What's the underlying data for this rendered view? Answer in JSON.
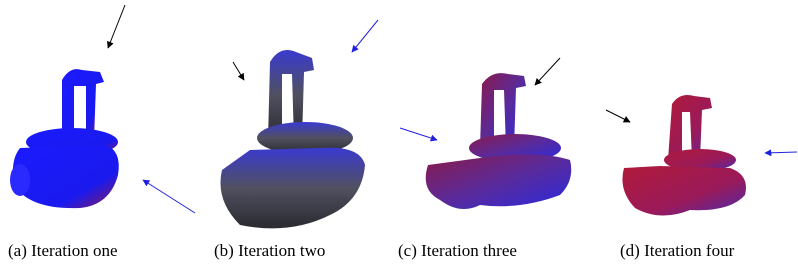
{
  "figure": {
    "captions": [
      "(a) Iteration one",
      "(b) Iteration two",
      "(c) Iteration three",
      "(d) Iteration four"
    ]
  }
}
